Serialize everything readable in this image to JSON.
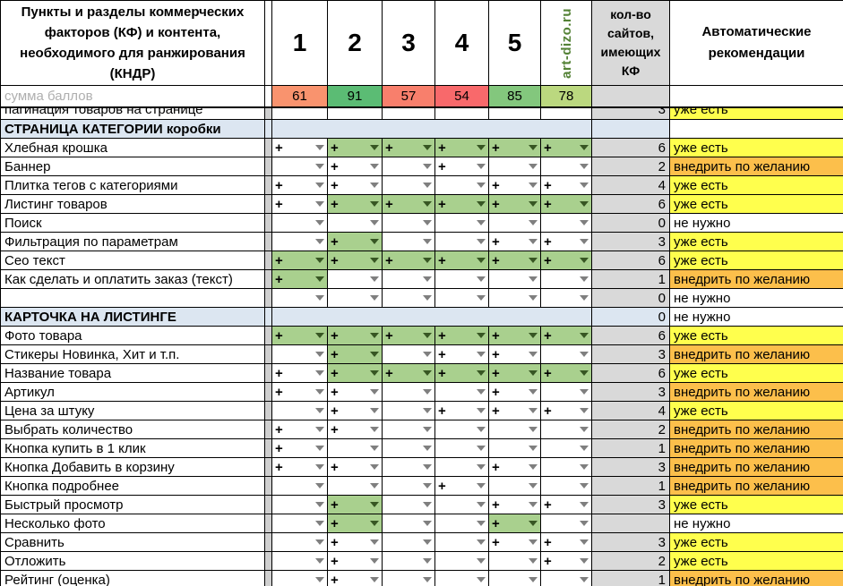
{
  "header": {
    "title": "Пункты и разделы коммерческих факторов (КФ) и контента, необходимого для ранжирования (КНДР)",
    "site_columns": [
      "1",
      "2",
      "3",
      "4",
      "5",
      "art-dizo.ru"
    ],
    "count_header": "кол-во сайтов, имеющих КФ",
    "rec_header": "Автоматические рекомендации",
    "sum_label": "сумма баллов",
    "sums": [
      {
        "value": "61",
        "color": "#F9936E"
      },
      {
        "value": "91",
        "color": "#5BBC74"
      },
      {
        "value": "57",
        "color": "#F87F6C"
      },
      {
        "value": "54",
        "color": "#F8696B"
      },
      {
        "value": "85",
        "color": "#83C77D"
      },
      {
        "value": "78",
        "color": "#BBD87F"
      }
    ]
  },
  "colors": {
    "brand_green": "#538135",
    "green_cell": "#A9D08E",
    "rec_yes": "#FFFF4D",
    "rec_opt": "#FCBF4B",
    "rec_no": "#FFFFFF",
    "section_bg": "#DCE6F1",
    "count_bg": "#D9D9D9"
  },
  "partial_row": {
    "label": "пагинация товаров на странице",
    "count": "3",
    "rec": "уже есть",
    "rec_bg": "rec_yes"
  },
  "rows": [
    {
      "type": "section",
      "label": "СТРАНИЦА КАТЕГОРИИ коробки",
      "count": "",
      "rec": "",
      "rec_bg": "rec_no"
    },
    {
      "type": "item",
      "label": "Хлебная крошка",
      "cells": [
        "+",
        "g",
        "g",
        "g",
        "g",
        "g"
      ],
      "count": "6",
      "rec": "уже есть",
      "rec_bg": "rec_yes"
    },
    {
      "type": "item",
      "label": "Баннер",
      "cells": [
        "",
        "+",
        "",
        "+",
        "",
        ""
      ],
      "count": "2",
      "rec": "внедрить по желанию",
      "rec_bg": "rec_opt"
    },
    {
      "type": "item",
      "label": "Плитка тегов с категориями",
      "cells": [
        "+",
        "+",
        "",
        "",
        "+",
        "+"
      ],
      "count": "4",
      "rec": "уже есть",
      "rec_bg": "rec_yes"
    },
    {
      "type": "item",
      "label": "Листинг товаров",
      "cells": [
        "+",
        "g",
        "g",
        "g",
        "g",
        "g"
      ],
      "count": "6",
      "rec": "уже есть",
      "rec_bg": "rec_yes"
    },
    {
      "type": "item",
      "label": "Поиск",
      "cells": [
        "",
        "",
        "",
        "",
        "",
        ""
      ],
      "count": "0",
      "rec": "не нужно",
      "rec_bg": "rec_no"
    },
    {
      "type": "item",
      "label": "Фильтрация по параметрам",
      "cells": [
        "",
        "g",
        "",
        "",
        "+",
        "+"
      ],
      "count": "3",
      "rec": "уже есть",
      "rec_bg": "rec_yes"
    },
    {
      "type": "item",
      "label": "Сео текст",
      "cells": [
        "g",
        "g",
        "g",
        "g",
        "g",
        "g"
      ],
      "count": "6",
      "rec": "уже есть",
      "rec_bg": "rec_yes"
    },
    {
      "type": "item",
      "label": "Как сделать и оплатить заказ (текст)",
      "cells": [
        "g",
        "",
        "",
        "",
        "",
        ""
      ],
      "count": "1",
      "rec": "внедрить по желанию",
      "rec_bg": "rec_opt"
    },
    {
      "type": "item",
      "label": "",
      "cells": [
        "",
        "",
        "",
        "",
        "",
        ""
      ],
      "count": "0",
      "rec": "не нужно",
      "rec_bg": "rec_no"
    },
    {
      "type": "section",
      "label": "КАРТОЧКА НА ЛИСТИНГЕ",
      "count": "0",
      "rec": "не нужно",
      "rec_bg": "rec_no"
    },
    {
      "type": "item",
      "label": "Фото товара",
      "cells": [
        "g",
        "g",
        "g",
        "g",
        "g",
        "g"
      ],
      "count": "6",
      "rec": "уже есть",
      "rec_bg": "rec_yes"
    },
    {
      "type": "item",
      "label": "Стикеры Новинка, Хит и т.п.",
      "cells": [
        "",
        "g",
        "",
        "+",
        "+",
        ""
      ],
      "count": "3",
      "rec": "внедрить по желанию",
      "rec_bg": "rec_opt"
    },
    {
      "type": "item",
      "label": "Название товара",
      "cells": [
        "+",
        "g",
        "g",
        "g",
        "g",
        "g"
      ],
      "count": "6",
      "rec": "уже есть",
      "rec_bg": "rec_yes"
    },
    {
      "type": "item",
      "label": "Артикул",
      "cells": [
        "+",
        "+",
        "",
        "",
        "+",
        ""
      ],
      "count": "3",
      "rec": "внедрить по желанию",
      "rec_bg": "rec_opt"
    },
    {
      "type": "item",
      "label": "Цена за штуку",
      "cells": [
        "",
        "+",
        "",
        "+",
        "+",
        "+"
      ],
      "count": "4",
      "rec": "уже есть",
      "rec_bg": "rec_yes"
    },
    {
      "type": "item",
      "label": "Выбрать количество",
      "cells": [
        "+",
        "+",
        "",
        "",
        "",
        ""
      ],
      "count": "2",
      "rec": "внедрить по желанию",
      "rec_bg": "rec_opt"
    },
    {
      "type": "item",
      "label": "Кнопка купить в 1 клик",
      "cells": [
        "+",
        "",
        "",
        "",
        "",
        ""
      ],
      "count": "1",
      "rec": "внедрить по желанию",
      "rec_bg": "rec_opt"
    },
    {
      "type": "item",
      "label": "Кнопка Добавить в корзину",
      "cells": [
        "+",
        "+",
        "",
        "",
        "+",
        ""
      ],
      "count": "3",
      "rec": "внедрить по желанию",
      "rec_bg": "rec_opt"
    },
    {
      "type": "item",
      "label": "Кнопка подробнее",
      "cells": [
        "",
        "",
        "",
        "+",
        "",
        ""
      ],
      "count": "1",
      "rec": "внедрить по желанию",
      "rec_bg": "rec_opt"
    },
    {
      "type": "item",
      "label": "Быстрый просмотр",
      "cells": [
        "",
        "g",
        "",
        "",
        "+",
        "+"
      ],
      "count": "3",
      "rec": "уже есть",
      "rec_bg": "rec_yes"
    },
    {
      "type": "item",
      "label": "Несколько фото",
      "cells": [
        "",
        "g",
        "",
        "",
        "g",
        ""
      ],
      "count": "",
      "rec": "не нужно",
      "rec_bg": "rec_no"
    },
    {
      "type": "item",
      "label": "Сравнить",
      "cells": [
        "",
        "+",
        "",
        "",
        "+",
        "+"
      ],
      "count": "3",
      "rec": "уже есть",
      "rec_bg": "rec_yes"
    },
    {
      "type": "item",
      "label": "Отложить",
      "cells": [
        "",
        "+",
        "",
        "",
        "",
        "+"
      ],
      "count": "2",
      "rec": "уже есть",
      "rec_bg": "rec_yes"
    },
    {
      "type": "item",
      "label": "Рейтинг (оценка)",
      "cells": [
        "",
        "+",
        "",
        "",
        "",
        ""
      ],
      "count": "1",
      "rec": "внедрить по желанию",
      "rec_bg": "rec_opt"
    }
  ]
}
